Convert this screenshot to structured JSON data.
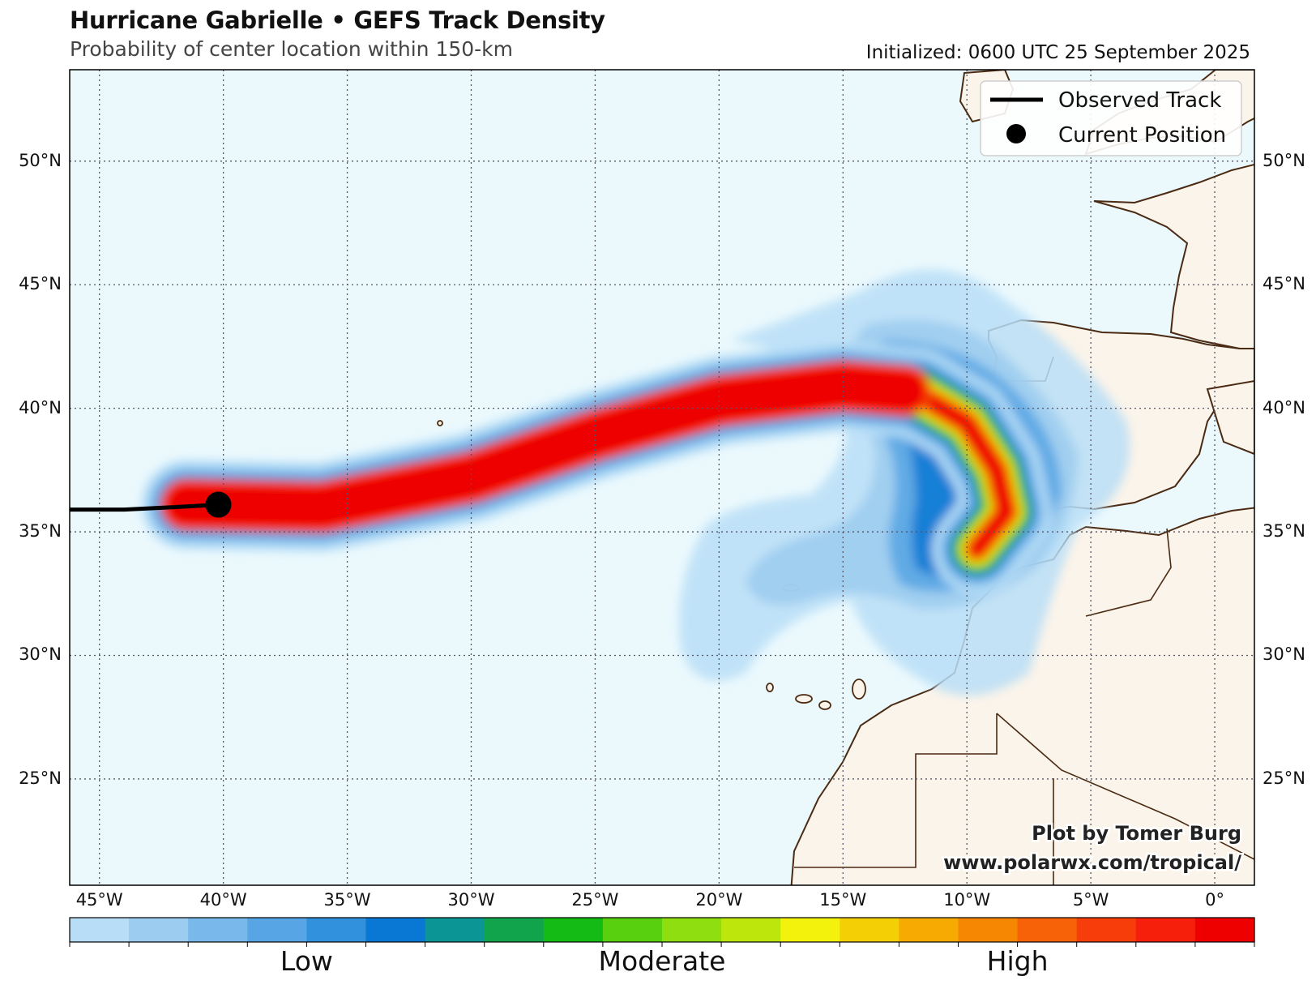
{
  "header": {
    "title": "Hurricane Gabrielle • GEFS Track Density",
    "subtitle": "Probability of center location within 150-km",
    "initialized": "Initialized: 0600 UTC 25 September 2025"
  },
  "map": {
    "lon_range": [
      -46.2,
      1.6
    ],
    "lat_range": [
      20.7,
      53.7
    ],
    "lat_labels": [
      "50°N",
      "45°N",
      "40°N",
      "35°N",
      "30°N",
      "25°N"
    ],
    "lat_values": [
      50,
      45,
      40,
      35,
      30,
      25
    ],
    "lon_labels": [
      "45°W",
      "40°W",
      "35°W",
      "30°W",
      "25°W",
      "20°W",
      "15°W",
      "10°W",
      "5°W",
      "0°"
    ],
    "lon_values": [
      -45,
      -40,
      -35,
      -30,
      -25,
      -20,
      -15,
      -10,
      -5,
      0
    ],
    "ocean_color": "#ebf9fd",
    "land_color": "#fbf4ea",
    "coast_color": "#4a2a12",
    "grid": true
  },
  "legend": {
    "observed_track": "Observed Track",
    "current_position": "Current Position",
    "placement": "top-right"
  },
  "storm": {
    "current_position": {
      "lon": -40.2,
      "lat": 36.1
    },
    "observed_track": [
      {
        "lon": -46.2,
        "lat": 35.9
      },
      {
        "lon": -44.0,
        "lat": 35.9
      },
      {
        "lon": -42.0,
        "lat": 36.0
      },
      {
        "lon": -40.2,
        "lat": 36.1
      }
    ]
  },
  "colorbar": {
    "colors": [
      "#b8def7",
      "#9ccdf0",
      "#78b8eb",
      "#57a5e4",
      "#3191dc",
      "#0878d4",
      "#0c9595",
      "#12a34d",
      "#15bb15",
      "#58d00f",
      "#8fde0f",
      "#bde60c",
      "#f2f20c",
      "#f5cf06",
      "#f6aa02",
      "#f68703",
      "#f76208",
      "#f63d0a",
      "#f51f0b",
      "#ee0000"
    ],
    "labels": [
      "Low",
      "Moderate",
      "High"
    ]
  },
  "credit": {
    "line1": "Plot by Tomer Burg",
    "line2": "www.polarwx.com/tropical/"
  }
}
